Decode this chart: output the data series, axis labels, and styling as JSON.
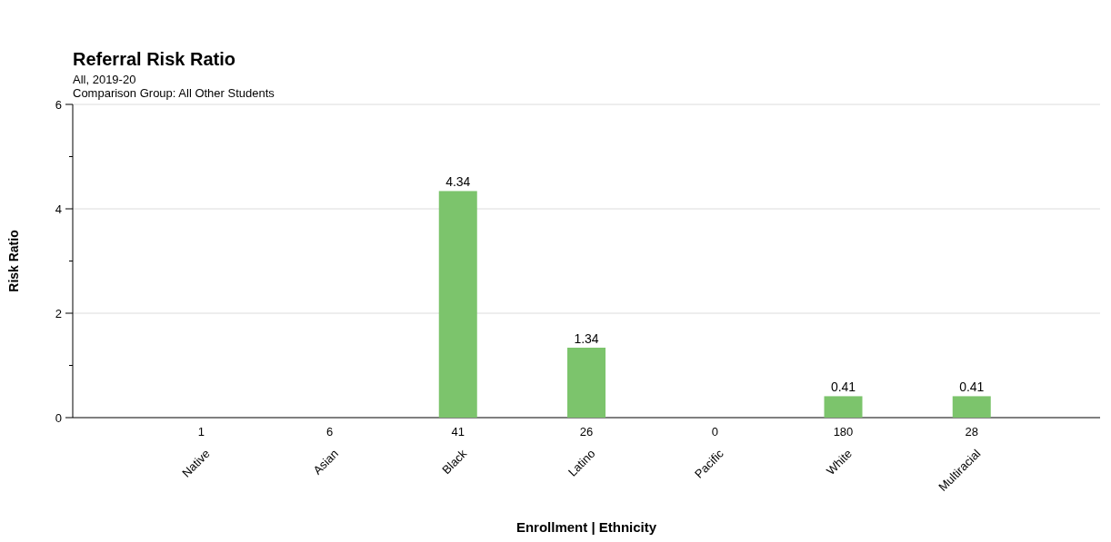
{
  "chart_data": {
    "type": "bar",
    "title": "Referral Risk Ratio",
    "subtitle": "All, 2019-20\nComparison Group: All Other Students",
    "xlabel": "Enrollment | Ethnicity",
    "ylabel": "Risk Ratio",
    "categories": [
      "Native",
      "Asian",
      "Black",
      "Latino",
      "Pacific",
      "White",
      "Multiracial"
    ],
    "values": [
      null,
      null,
      4.34,
      1.34,
      null,
      0.41,
      0.41
    ],
    "color": "#7cc46c",
    "data_labels": true,
    "ylim": [
      0,
      6
    ],
    "yticks": [
      0,
      {
        "value": 1,
        "label": null
      },
      2,
      {
        "value": 3,
        "label": null
      },
      4,
      {
        "value": 5,
        "label": null
      },
      6
    ],
    "grid": "y",
    "annotations": [
      "1",
      "6",
      "41",
      "26",
      "0",
      "180",
      "28"
    ]
  }
}
